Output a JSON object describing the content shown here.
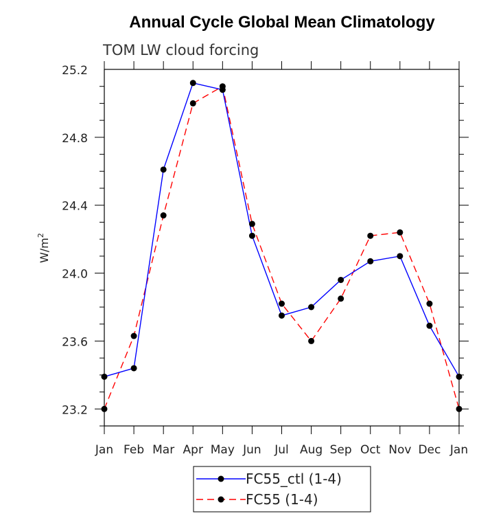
{
  "chart_data": {
    "type": "line",
    "title": "Annual Cycle Global Mean Climatology",
    "subtitle": "TOM LW cloud forcing",
    "ylabel": "W/m",
    "ylabel_sup": "2",
    "xlabel": "",
    "categories": [
      "Jan",
      "Feb",
      "Mar",
      "Apr",
      "May",
      "Jun",
      "Jul",
      "Aug",
      "Sep",
      "Oct",
      "Nov",
      "Dec",
      "Jan"
    ],
    "ylim": [
      23.1,
      25.2
    ],
    "yticks": [
      "23.2",
      "23.6",
      "24.0",
      "24.4",
      "24.8",
      "25.2"
    ],
    "grid": false,
    "legend_position": "bottom-center",
    "series": [
      {
        "name": "FC55_ctl (1-4)",
        "color": "#0000ff",
        "dash": "solid",
        "marker": "filled-circle",
        "values": [
          23.39,
          23.44,
          24.61,
          25.12,
          25.08,
          24.22,
          23.75,
          23.8,
          23.96,
          24.07,
          24.1,
          23.69,
          23.39
        ]
      },
      {
        "name": "FC55 (1-4)",
        "color": "#ff0000",
        "dash": "dashed",
        "marker": "filled-circle",
        "values": [
          23.2,
          23.63,
          24.34,
          25.0,
          25.1,
          24.29,
          23.82,
          23.6,
          23.85,
          24.22,
          24.24,
          23.82,
          23.2
        ]
      }
    ]
  }
}
